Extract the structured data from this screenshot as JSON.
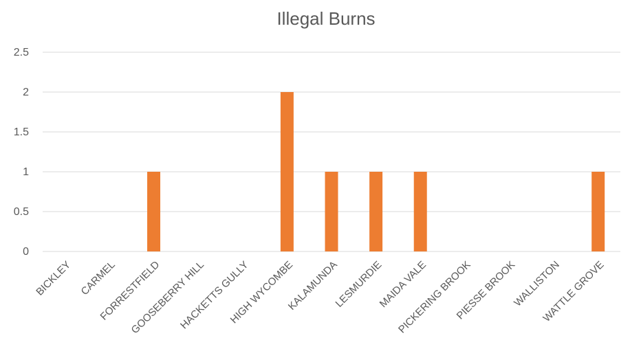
{
  "chart_data": {
    "type": "bar",
    "title": "Illegal Burns",
    "xlabel": "",
    "ylabel": "",
    "categories": [
      "BICKLEY",
      "CARMEL",
      "FORRESTFIELD",
      "GOOSEBERRY HILL",
      "HACKETTS GULLY",
      "HIGH WYCOMBE",
      "KALAMUNDA",
      "LESMURDIE",
      "MAIDA VALE",
      "PICKERING BROOK",
      "PIESSE BROOK",
      "WALLISTON",
      "WATTLE GROVE"
    ],
    "values": [
      0,
      0,
      1,
      0,
      0,
      2,
      1,
      1,
      1,
      0,
      0,
      0,
      1
    ],
    "ylim": [
      0,
      2.5
    ],
    "yticks": [
      "0",
      "0.5",
      "1",
      "1.5",
      "2",
      "2.5"
    ],
    "grid": true,
    "legend": "none",
    "bar_color": "#ED7D31"
  }
}
